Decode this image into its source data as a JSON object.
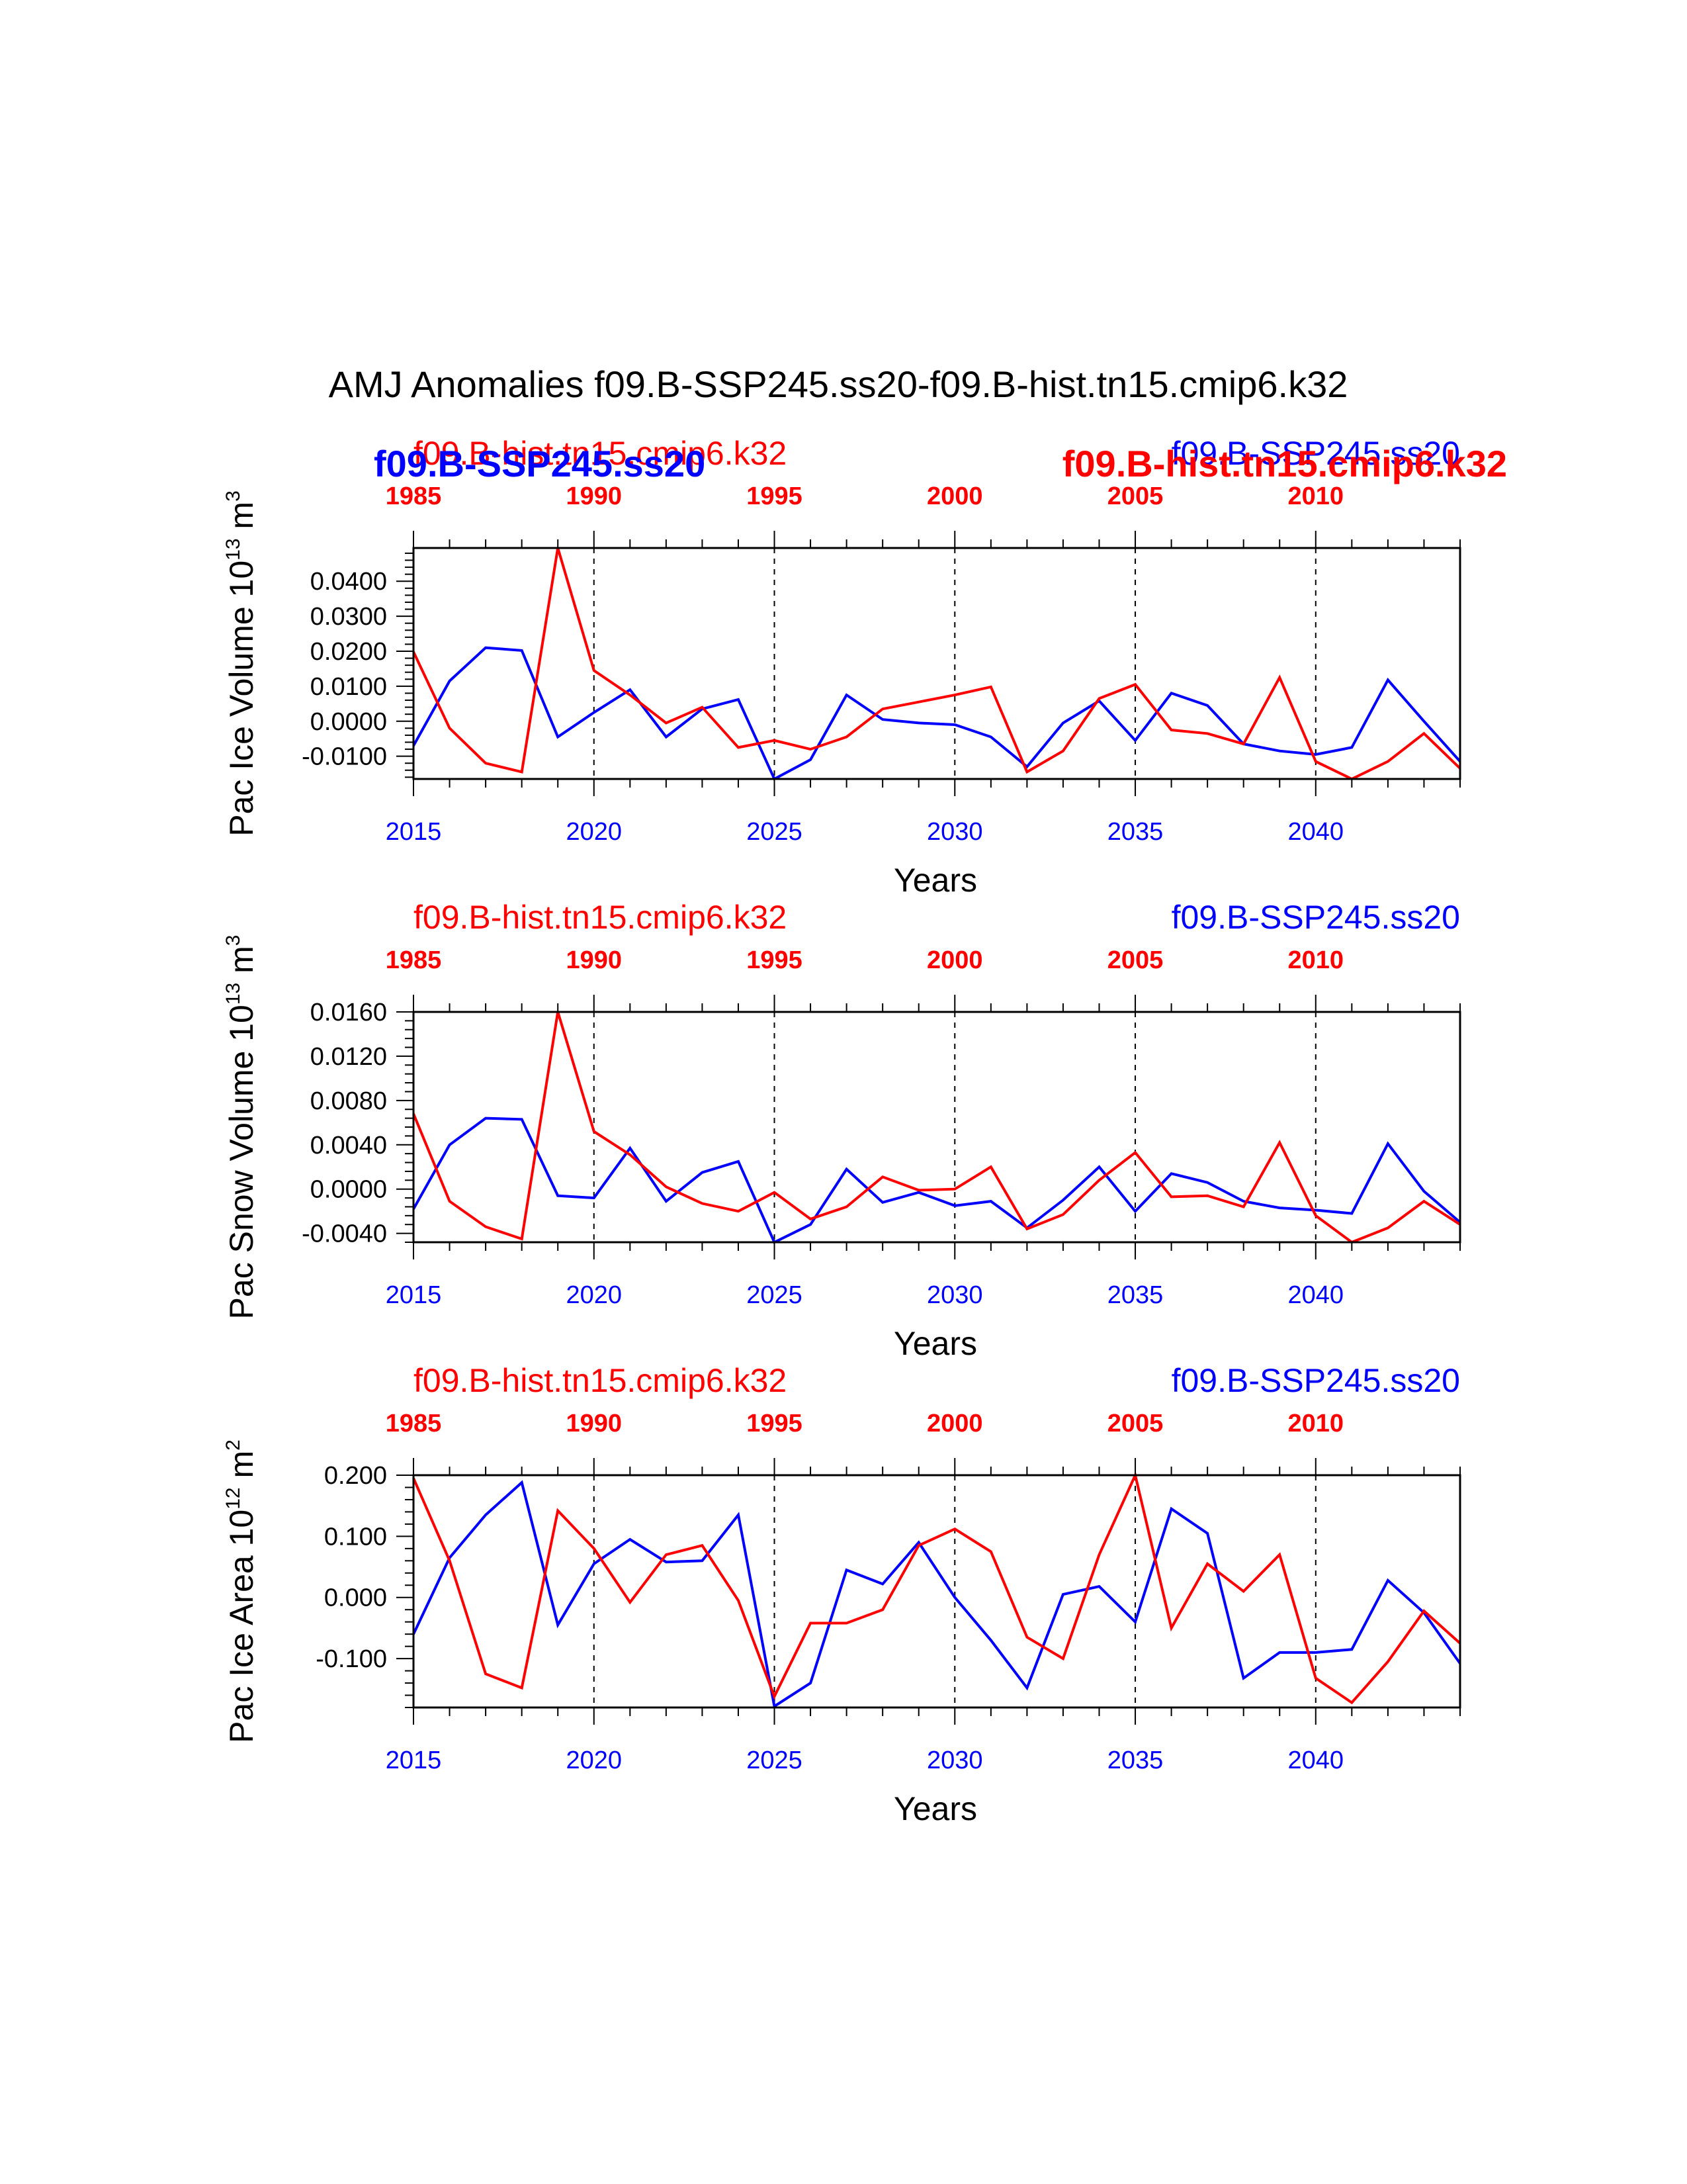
{
  "title": "AMJ Anomalies f09.B-SSP245.ss20-f09.B-hist.tn15.cmip6.k32",
  "colors": {
    "ssp245": "#0000ff",
    "hist": "#ff0000",
    "frame": "#000000"
  },
  "chart_data": [
    {
      "type": "line",
      "ylabel": {
        "main": "Pac Ice Volume 10",
        "exp": "13",
        "unit": " m",
        "unit_exp": "3"
      },
      "xlabel": "Years",
      "ylim": [
        -0.0165,
        0.0495
      ],
      "yticks": [
        -0.01,
        0.0,
        0.01,
        0.02,
        0.03,
        0.04
      ],
      "yticklabels": [
        "-0.0100",
        "0.0000",
        "0.0100",
        "0.0200",
        "0.0300",
        "0.0400"
      ],
      "yminor_step": 0.002,
      "xlim": [
        2015,
        2044
      ],
      "xticks": [
        2015,
        2020,
        2025,
        2030,
        2035,
        2040
      ],
      "xticklabels": [
        "2015",
        "2020",
        "2025",
        "2030",
        "2035",
        "2040"
      ],
      "top_ticklabels": [
        "1985",
        "1990",
        "1995",
        "2000",
        "2005",
        "2010"
      ],
      "captions": [
        {
          "text": "f09.B-hist.tn15.cmip6.k32",
          "color": "red",
          "position": "upper-left"
        },
        {
          "text": "f09.B-SSP245.ss20",
          "color": "blue",
          "position": "upper-left-bold"
        },
        {
          "text": "f09.B-SSP245.ss20",
          "color": "blue",
          "position": "upper-right"
        },
        {
          "text": "f09.B-hist.tn15.cmip6.k32",
          "color": "red",
          "position": "upper-right-bold"
        }
      ],
      "series": [
        {
          "color": "blue",
          "x": [
            2015,
            2016,
            2017,
            2018,
            2019,
            2020,
            2021,
            2022,
            2023,
            2024,
            2025,
            2026,
            2027,
            2028,
            2029,
            2030,
            2031,
            2032,
            2033,
            2034,
            2035,
            2036,
            2037,
            2038,
            2039,
            2040,
            2041,
            2042,
            2043,
            2044
          ],
          "values": [
            -0.007,
            0.0115,
            0.021,
            0.0202,
            -0.0045,
            0.0025,
            0.009,
            -0.0045,
            0.0035,
            0.0062,
            -0.0165,
            -0.011,
            0.0075,
            0.0005,
            -0.0005,
            -0.001,
            -0.0045,
            -0.013,
            -0.0005,
            0.0058,
            -0.0055,
            0.008,
            0.0045,
            -0.0065,
            -0.0085,
            -0.0095,
            -0.0075,
            0.0118,
            0.0,
            -0.0115
          ]
        },
        {
          "color": "red",
          "x": [
            2015,
            2016,
            2017,
            2018,
            2019,
            2020,
            2021,
            2022,
            2023,
            2024,
            2025,
            2026,
            2027,
            2028,
            2029,
            2030,
            2031,
            2032,
            2033,
            2034,
            2035,
            2036,
            2037,
            2038,
            2039,
            2040,
            2041,
            2042,
            2043,
            2044
          ],
          "values": [
            0.0198,
            -0.002,
            -0.012,
            -0.0145,
            0.0495,
            0.0145,
            0.0075,
            -0.0005,
            0.004,
            -0.0075,
            -0.0055,
            -0.008,
            -0.0045,
            0.0035,
            0.0055,
            0.0075,
            0.0098,
            -0.0145,
            -0.0085,
            0.0065,
            0.0105,
            -0.0025,
            -0.0035,
            -0.0065,
            0.0125,
            -0.0115,
            -0.0165,
            -0.0115,
            -0.0035,
            -0.0135
          ]
        }
      ]
    },
    {
      "type": "line",
      "ylabel": {
        "main": "Pac Snow Volume 10",
        "exp": "13",
        "unit": " m",
        "unit_exp": "3"
      },
      "xlabel": "Years",
      "ylim": [
        -0.0048,
        0.016
      ],
      "yticks": [
        -0.004,
        0.0,
        0.004,
        0.008,
        0.012,
        0.016
      ],
      "yticklabels": [
        "-0.0040",
        "0.0000",
        "0.0040",
        "0.0080",
        "0.0120",
        "0.0160"
      ],
      "yminor_step": 0.0008,
      "xlim": [
        2015,
        2044
      ],
      "xticks": [
        2015,
        2020,
        2025,
        2030,
        2035,
        2040
      ],
      "xticklabels": [
        "2015",
        "2020",
        "2025",
        "2030",
        "2035",
        "2040"
      ],
      "top_ticklabels": [
        "1985",
        "1990",
        "1995",
        "2000",
        "2005",
        "2010"
      ],
      "captions": [
        {
          "text": "f09.B-hist.tn15.cmip6.k32",
          "color": "red",
          "position": "upper-left"
        },
        {
          "text": "f09.B-SSP245.ss20",
          "color": "blue",
          "position": "upper-right"
        }
      ],
      "series": [
        {
          "color": "blue",
          "x": [
            2015,
            2016,
            2017,
            2018,
            2019,
            2020,
            2021,
            2022,
            2023,
            2024,
            2025,
            2026,
            2027,
            2028,
            2029,
            2030,
            2031,
            2032,
            2033,
            2034,
            2035,
            2036,
            2037,
            2038,
            2039,
            2040,
            2041,
            2042,
            2043,
            2044
          ],
          "values": [
            -0.0018,
            0.004,
            0.0064,
            0.0063,
            -0.0006,
            -0.0008,
            0.0037,
            -0.0011,
            0.0015,
            0.0025,
            -0.0048,
            -0.0032,
            0.0018,
            -0.0012,
            -0.0003,
            -0.0015,
            -0.0011,
            -0.0035,
            -0.001,
            0.002,
            -0.002,
            0.0014,
            0.0006,
            -0.0011,
            -0.0017,
            -0.0019,
            -0.0022,
            0.0041,
            -0.0002,
            -0.003
          ]
        },
        {
          "color": "red",
          "x": [
            2015,
            2016,
            2017,
            2018,
            2019,
            2020,
            2021,
            2022,
            2023,
            2024,
            2025,
            2026,
            2027,
            2028,
            2029,
            2030,
            2031,
            2032,
            2033,
            2034,
            2035,
            2036,
            2037,
            2038,
            2039,
            2040,
            2041,
            2042,
            2043,
            2044
          ],
          "values": [
            0.0068,
            -0.0011,
            -0.0034,
            -0.0045,
            0.016,
            0.0052,
            0.0031,
            0.0002,
            -0.0013,
            -0.002,
            -0.0003,
            -0.0027,
            -0.0016,
            0.0011,
            -0.0001,
            0.0,
            0.002,
            -0.0036,
            -0.0023,
            0.0008,
            0.0033,
            -0.0007,
            -0.0006,
            -0.0016,
            0.0042,
            -0.0024,
            -0.0048,
            -0.0035,
            -0.0011,
            -0.0032
          ]
        }
      ]
    },
    {
      "type": "line",
      "ylabel": {
        "main": "Pac Ice Area 10",
        "exp": "12",
        "unit": " m",
        "unit_exp": "2"
      },
      "xlabel": "Years",
      "ylim": [
        -0.18,
        0.2
      ],
      "yticks": [
        -0.1,
        0.0,
        0.1,
        0.2
      ],
      "yticklabels": [
        "-0.100",
        "0.000",
        "0.100",
        "0.200"
      ],
      "yminor_step": 0.02,
      "xlim": [
        2015,
        2044
      ],
      "xticks": [
        2015,
        2020,
        2025,
        2030,
        2035,
        2040
      ],
      "xticklabels": [
        "2015",
        "2020",
        "2025",
        "2030",
        "2035",
        "2040"
      ],
      "top_ticklabels": [
        "1985",
        "1990",
        "1995",
        "2000",
        "2005",
        "2010"
      ],
      "captions": [
        {
          "text": "f09.B-hist.tn15.cmip6.k32",
          "color": "red",
          "position": "upper-left"
        },
        {
          "text": "f09.B-SSP245.ss20",
          "color": "blue",
          "position": "upper-right"
        }
      ],
      "series": [
        {
          "color": "blue",
          "x": [
            2015,
            2016,
            2017,
            2018,
            2019,
            2020,
            2021,
            2022,
            2023,
            2024,
            2025,
            2026,
            2027,
            2028,
            2029,
            2030,
            2031,
            2032,
            2033,
            2034,
            2035,
            2036,
            2037,
            2038,
            2039,
            2040,
            2041,
            2042,
            2043,
            2044
          ],
          "values": [
            -0.06,
            0.065,
            0.135,
            0.188,
            -0.045,
            0.055,
            0.095,
            0.058,
            0.06,
            0.135,
            -0.178,
            -0.14,
            0.045,
            0.022,
            0.09,
            0.0,
            -0.07,
            -0.148,
            0.005,
            0.018,
            -0.04,
            0.145,
            0.105,
            -0.132,
            -0.09,
            -0.09,
            -0.085,
            0.028,
            -0.025,
            -0.108
          ]
        },
        {
          "color": "red",
          "x": [
            2015,
            2016,
            2017,
            2018,
            2019,
            2020,
            2021,
            2022,
            2023,
            2024,
            2025,
            2026,
            2027,
            2028,
            2029,
            2030,
            2031,
            2032,
            2033,
            2034,
            2035,
            2036,
            2037,
            2038,
            2039,
            2040,
            2041,
            2042,
            2043,
            2044
          ],
          "values": [
            0.195,
            0.06,
            -0.125,
            -0.148,
            0.142,
            0.08,
            -0.008,
            0.07,
            0.085,
            -0.005,
            -0.162,
            -0.042,
            -0.042,
            -0.02,
            0.085,
            0.112,
            0.075,
            -0.065,
            -0.1,
            0.07,
            0.2,
            -0.05,
            0.055,
            0.01,
            0.07,
            -0.132,
            -0.172,
            -0.105,
            -0.022,
            -0.075
          ]
        }
      ]
    }
  ]
}
